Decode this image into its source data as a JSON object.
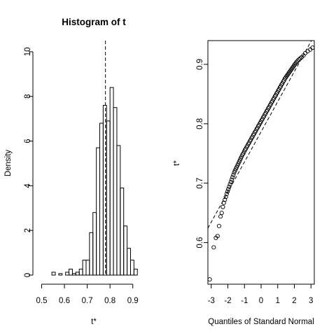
{
  "chart_data": [
    {
      "type": "histogram",
      "title": "Histogram of t",
      "xlabel": "t*",
      "ylabel": "Density",
      "xlim": [
        0.5,
        0.95
      ],
      "ylim": [
        0,
        11
      ],
      "xticks": [
        "0.5",
        "0.6",
        "0.7",
        "0.8",
        "0.9"
      ],
      "yticks": [
        "0",
        "2",
        "4",
        "6",
        "8",
        "10"
      ],
      "reference_line": 0.78,
      "bins": [
        {
          "start": 0.53,
          "end": 0.545,
          "density": 0.0
        },
        {
          "start": 0.545,
          "end": 0.56,
          "density": 0.13
        },
        {
          "start": 0.56,
          "end": 0.575,
          "density": 0.0
        },
        {
          "start": 0.575,
          "end": 0.59,
          "density": 0.07
        },
        {
          "start": 0.59,
          "end": 0.605,
          "density": 0.0
        },
        {
          "start": 0.605,
          "end": 0.62,
          "density": 0.13
        },
        {
          "start": 0.62,
          "end": 0.635,
          "density": 0.27
        },
        {
          "start": 0.635,
          "end": 0.65,
          "density": 0.07
        },
        {
          "start": 0.65,
          "end": 0.665,
          "density": 0.13
        },
        {
          "start": 0.665,
          "end": 0.68,
          "density": 0.27
        },
        {
          "start": 0.68,
          "end": 0.695,
          "density": 0.67
        },
        {
          "start": 0.695,
          "end": 0.71,
          "density": 0.67
        },
        {
          "start": 0.71,
          "end": 0.725,
          "density": 1.9
        },
        {
          "start": 0.725,
          "end": 0.74,
          "density": 2.8
        },
        {
          "start": 0.74,
          "end": 0.755,
          "density": 5.7
        },
        {
          "start": 0.755,
          "end": 0.77,
          "density": 6.8
        },
        {
          "start": 0.77,
          "end": 0.785,
          "density": 7.6
        },
        {
          "start": 0.785,
          "end": 0.8,
          "density": 6.9
        },
        {
          "start": 0.8,
          "end": 0.815,
          "density": 8.4
        },
        {
          "start": 0.815,
          "end": 0.83,
          "density": 7.5
        },
        {
          "start": 0.83,
          "end": 0.845,
          "density": 5.8
        },
        {
          "start": 0.845,
          "end": 0.86,
          "density": 3.9
        },
        {
          "start": 0.86,
          "end": 0.875,
          "density": 2.2
        },
        {
          "start": 0.875,
          "end": 0.89,
          "density": 1.2
        },
        {
          "start": 0.89,
          "end": 0.905,
          "density": 0.67
        },
        {
          "start": 0.905,
          "end": 0.92,
          "density": 0.27
        }
      ]
    },
    {
      "type": "scatter",
      "title": "",
      "xlabel": "Quantiles of Standard Normal",
      "ylabel": "t*",
      "xlim": [
        -3.2,
        3.2
      ],
      "ylim": [
        0.53,
        0.94
      ],
      "xticks": [
        "-3",
        "-2",
        "-1",
        "0",
        "1",
        "2",
        "3"
      ],
      "yticks": [
        "0.6",
        "0.7",
        "0.8",
        "0.9"
      ],
      "reference_line": {
        "intercept": 0.7865,
        "slope": 0.0507
      },
      "points": [
        [
          -3.09,
          0.538
        ],
        [
          -2.85,
          0.592
        ],
        [
          -2.72,
          0.608
        ],
        [
          -2.62,
          0.611
        ],
        [
          -2.53,
          0.628
        ],
        [
          -2.44,
          0.644
        ],
        [
          -2.37,
          0.65
        ],
        [
          -2.3,
          0.66
        ],
        [
          -2.24,
          0.667
        ],
        [
          -2.18,
          0.672
        ],
        [
          -2.12,
          0.677
        ],
        [
          -2.07,
          0.682
        ],
        [
          -2.02,
          0.686
        ],
        [
          -1.97,
          0.69
        ],
        [
          -1.92,
          0.694
        ],
        [
          -1.87,
          0.698
        ],
        [
          -1.82,
          0.702
        ],
        [
          -1.77,
          0.706
        ],
        [
          -1.72,
          0.71
        ],
        [
          -1.67,
          0.714
        ],
        [
          -1.62,
          0.718
        ],
        [
          -1.57,
          0.721
        ],
        [
          -1.52,
          0.724
        ],
        [
          -1.47,
          0.727
        ],
        [
          -1.42,
          0.73
        ],
        [
          -1.37,
          0.733
        ],
        [
          -1.32,
          0.736
        ],
        [
          -1.27,
          0.739
        ],
        [
          -1.22,
          0.742
        ],
        [
          -1.17,
          0.745
        ],
        [
          -1.12,
          0.748
        ],
        [
          -1.07,
          0.75
        ],
        [
          -1.02,
          0.753
        ],
        [
          -0.97,
          0.756
        ],
        [
          -0.92,
          0.758
        ],
        [
          -0.87,
          0.761
        ],
        [
          -0.82,
          0.763
        ],
        [
          -0.77,
          0.766
        ],
        [
          -0.72,
          0.768
        ],
        [
          -0.67,
          0.771
        ],
        [
          -0.62,
          0.773
        ],
        [
          -0.57,
          0.776
        ],
        [
          -0.52,
          0.778
        ],
        [
          -0.47,
          0.781
        ],
        [
          -0.42,
          0.783
        ],
        [
          -0.37,
          0.786
        ],
        [
          -0.32,
          0.788
        ],
        [
          -0.27,
          0.791
        ],
        [
          -0.22,
          0.793
        ],
        [
          -0.17,
          0.796
        ],
        [
          -0.12,
          0.798
        ],
        [
          -0.07,
          0.801
        ],
        [
          -0.02,
          0.803
        ],
        [
          0.03,
          0.806
        ],
        [
          0.08,
          0.808
        ],
        [
          0.13,
          0.811
        ],
        [
          0.18,
          0.813
        ],
        [
          0.23,
          0.816
        ],
        [
          0.28,
          0.818
        ],
        [
          0.33,
          0.821
        ],
        [
          0.38,
          0.823
        ],
        [
          0.43,
          0.826
        ],
        [
          0.48,
          0.828
        ],
        [
          0.53,
          0.831
        ],
        [
          0.58,
          0.833
        ],
        [
          0.63,
          0.836
        ],
        [
          0.68,
          0.838
        ],
        [
          0.73,
          0.841
        ],
        [
          0.78,
          0.843
        ],
        [
          0.83,
          0.846
        ],
        [
          0.88,
          0.848
        ],
        [
          0.93,
          0.851
        ],
        [
          0.98,
          0.853
        ],
        [
          1.03,
          0.856
        ],
        [
          1.08,
          0.858
        ],
        [
          1.13,
          0.861
        ],
        [
          1.18,
          0.863
        ],
        [
          1.23,
          0.866
        ],
        [
          1.28,
          0.868
        ],
        [
          1.33,
          0.871
        ],
        [
          1.38,
          0.873
        ],
        [
          1.43,
          0.876
        ],
        [
          1.48,
          0.878
        ],
        [
          1.53,
          0.88
        ],
        [
          1.58,
          0.882
        ],
        [
          1.63,
          0.884
        ],
        [
          1.68,
          0.886
        ],
        [
          1.73,
          0.888
        ],
        [
          1.78,
          0.89
        ],
        [
          1.83,
          0.892
        ],
        [
          1.88,
          0.894
        ],
        [
          1.93,
          0.896
        ],
        [
          1.98,
          0.898
        ],
        [
          2.03,
          0.9
        ],
        [
          2.08,
          0.902
        ],
        [
          2.14,
          0.904
        ],
        [
          2.2,
          0.906
        ],
        [
          2.27,
          0.908
        ],
        [
          2.35,
          0.91
        ],
        [
          2.44,
          0.912
        ],
        [
          2.55,
          0.915
        ],
        [
          2.66,
          0.919
        ],
        [
          2.8,
          0.922
        ],
        [
          2.96,
          0.925
        ],
        [
          3.09,
          0.928
        ]
      ]
    }
  ]
}
